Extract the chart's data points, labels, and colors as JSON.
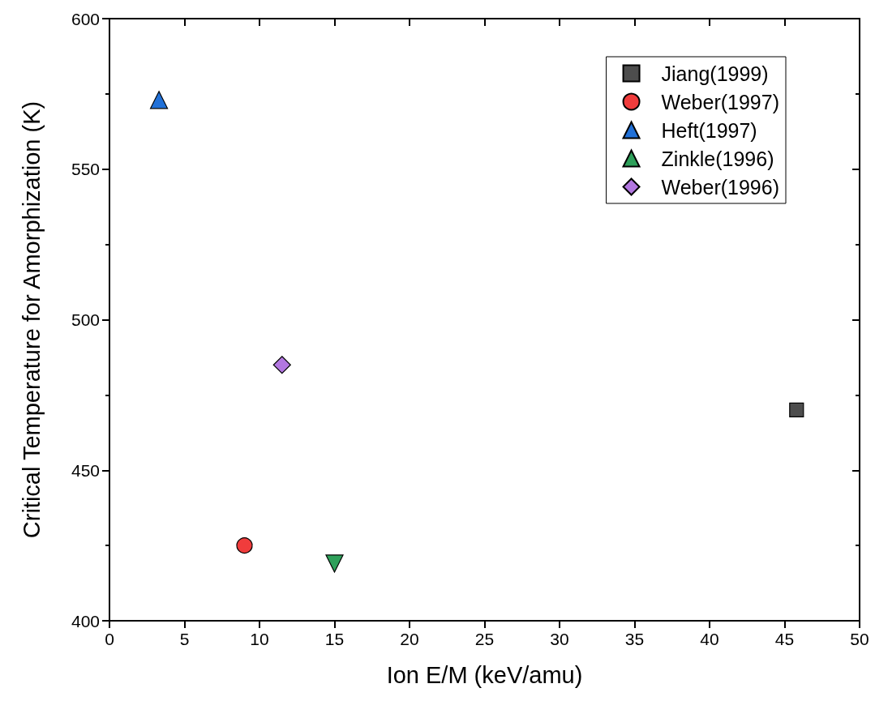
{
  "chart_data": {
    "type": "scatter",
    "xlabel": "Ion E/M (keV/amu)",
    "ylabel": "Critical Temperature for Amorphization (K)",
    "xlim": [
      0,
      50
    ],
    "xticks": [
      0,
      5,
      10,
      15,
      20,
      25,
      30,
      35,
      40,
      45,
      50
    ],
    "ylim": [
      400,
      600
    ],
    "yticks": [
      400,
      450,
      500,
      550,
      600
    ],
    "grid": false,
    "legend": "top right",
    "series": [
      {
        "name": "Jiang(1999)",
        "color": "#4d4d4d",
        "marker": "square",
        "x": [
          45.8
        ],
        "values": [
          470
        ]
      },
      {
        "name": "Weber(1997)",
        "color": "#f03c3c",
        "marker": "circle",
        "x": [
          9
        ],
        "values": [
          425
        ]
      },
      {
        "name": "Heft(1997)",
        "color": "#2171d8",
        "marker": "triangle",
        "x": [
          3.3
        ],
        "values": [
          573
        ]
      },
      {
        "name": "Zinkle(1996)",
        "color": "#2ea05a",
        "marker": "triangle-down",
        "x": [
          15
        ],
        "values": [
          419
        ]
      },
      {
        "name": "Weber(1996)",
        "color": "#b277e0",
        "marker": "diamond",
        "x": [
          11.5
        ],
        "values": [
          485
        ]
      }
    ]
  }
}
